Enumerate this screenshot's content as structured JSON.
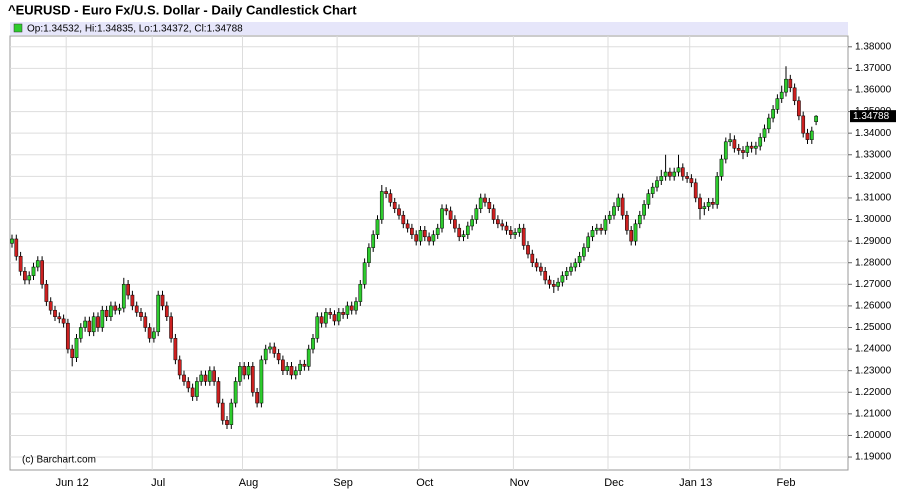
{
  "chart_data": {
    "type": "candlestick",
    "title": "^EURUSD - Euro Fx/U.S. Dollar - Daily Candlestick Chart",
    "ohlc_label": "Op:1.34532, Hi:1.34835, Lo:1.34372, Cl:1.34788",
    "credit": "(c) Barchart.com",
    "up_color": "#2ecc2e",
    "down_color": "#cc2020",
    "grid": true,
    "ylim": [
      1.184,
      1.385
    ],
    "yticks": [
      {
        "value": 1.19,
        "label": "1.19000"
      },
      {
        "value": 1.2,
        "label": "1.20000"
      },
      {
        "value": 1.21,
        "label": "1.21000"
      },
      {
        "value": 1.22,
        "label": "1.22000"
      },
      {
        "value": 1.23,
        "label": "1.23000"
      },
      {
        "value": 1.24,
        "label": "1.24000"
      },
      {
        "value": 1.25,
        "label": "1.25000"
      },
      {
        "value": 1.26,
        "label": "1.26000"
      },
      {
        "value": 1.27,
        "label": "1.27000"
      },
      {
        "value": 1.28,
        "label": "1.28000"
      },
      {
        "value": 1.29,
        "label": "1.29000"
      },
      {
        "value": 1.3,
        "label": "1.30000"
      },
      {
        "value": 1.31,
        "label": "1.31000"
      },
      {
        "value": 1.32,
        "label": "1.32000"
      },
      {
        "value": 1.33,
        "label": "1.33000"
      },
      {
        "value": 1.34,
        "label": "1.34000"
      },
      {
        "value": 1.35,
        "label": "1.35000"
      },
      {
        "value": 1.36,
        "label": "1.36000"
      },
      {
        "value": 1.37,
        "label": "1.37000"
      },
      {
        "value": 1.38,
        "label": "1.38000"
      }
    ],
    "categories": [
      null,
      null,
      null,
      null,
      null,
      null,
      null,
      null,
      null,
      null,
      null,
      null,
      null,
      null,
      "Jun 12",
      null,
      null,
      null,
      null,
      null,
      null,
      null,
      null,
      null,
      null,
      null,
      null,
      null,
      null,
      null,
      null,
      null,
      null,
      null,
      "Jul",
      null,
      null,
      null,
      null,
      null,
      null,
      null,
      null,
      null,
      null,
      null,
      null,
      null,
      null,
      null,
      null,
      null,
      null,
      null,
      null,
      "Aug",
      null,
      null,
      null,
      null,
      null,
      null,
      null,
      null,
      null,
      null,
      null,
      null,
      null,
      null,
      null,
      null,
      null,
      null,
      null,
      null,
      null,
      "Sep",
      null,
      null,
      null,
      null,
      null,
      null,
      null,
      null,
      null,
      null,
      null,
      null,
      null,
      null,
      null,
      null,
      null,
      null,
      "Oct",
      null,
      null,
      null,
      null,
      null,
      null,
      null,
      null,
      null,
      null,
      null,
      null,
      null,
      null,
      null,
      null,
      null,
      null,
      null,
      null,
      null,
      "Nov",
      null,
      null,
      null,
      null,
      null,
      null,
      null,
      null,
      null,
      null,
      null,
      null,
      null,
      null,
      null,
      null,
      null,
      null,
      null,
      null,
      null,
      "Dec",
      null,
      null,
      null,
      null,
      null,
      null,
      null,
      null,
      null,
      null,
      null,
      null,
      null,
      null,
      null,
      null,
      null,
      null,
      "Jan 13",
      null,
      null,
      null,
      null,
      null,
      null,
      null,
      null,
      null,
      null,
      null,
      null,
      null,
      null,
      null,
      null,
      null,
      null,
      null,
      null,
      "Feb",
      null,
      null,
      null,
      null,
      null,
      null,
      null
    ],
    "open": [
      1.289,
      1.291,
      1.283,
      1.276,
      1.272,
      1.274,
      1.278,
      1.281,
      1.27,
      1.262,
      1.258,
      1.255,
      1.254,
      1.252,
      1.24,
      1.236,
      1.245,
      1.25,
      1.253,
      1.248,
      1.255,
      1.25,
      1.258,
      1.255,
      1.26,
      1.258,
      1.259,
      1.27,
      1.265,
      1.26,
      1.257,
      1.255,
      1.25,
      1.245,
      1.248,
      1.265,
      1.26,
      1.255,
      1.245,
      1.235,
      1.228,
      1.225,
      1.222,
      1.218,
      1.225,
      1.228,
      1.225,
      1.23,
      1.225,
      1.215,
      1.207,
      1.205,
      1.215,
      1.225,
      1.232,
      1.228,
      1.232,
      1.22,
      1.215,
      1.235,
      1.24,
      1.241,
      1.238,
      1.235,
      1.23,
      1.232,
      1.228,
      1.23,
      1.233,
      1.232,
      1.24,
      1.245,
      1.255,
      1.252,
      1.257,
      1.256,
      1.253,
      1.257,
      1.256,
      1.26,
      1.258,
      1.262,
      1.27,
      1.28,
      1.287,
      1.293,
      1.3,
      1.313,
      1.312,
      1.308,
      1.305,
      1.302,
      1.298,
      1.296,
      1.293,
      1.29,
      1.295,
      1.292,
      1.29,
      1.293,
      1.296,
      1.305,
      1.304,
      1.3,
      1.296,
      1.292,
      1.293,
      1.297,
      1.3,
      1.305,
      1.31,
      1.308,
      1.305,
      1.3,
      1.298,
      1.297,
      1.295,
      1.293,
      1.294,
      1.296,
      1.288,
      1.284,
      1.28,
      1.278,
      1.276,
      1.272,
      1.27,
      1.269,
      1.271,
      1.274,
      1.276,
      1.278,
      1.28,
      1.283,
      1.287,
      1.292,
      1.295,
      1.296,
      1.295,
      1.3,
      1.302,
      1.306,
      1.31,
      1.302,
      1.295,
      1.29,
      1.298,
      1.302,
      1.307,
      1.312,
      1.315,
      1.318,
      1.32,
      1.322,
      1.32,
      1.322,
      1.324,
      1.32,
      1.319,
      1.317,
      1.31,
      1.305,
      1.306,
      1.308,
      1.307,
      1.32,
      1.328,
      1.336,
      1.337,
      1.333,
      1.332,
      1.331,
      1.334,
      1.333,
      1.334,
      1.338,
      1.342,
      1.347,
      1.351,
      1.356,
      1.359,
      1.365,
      1.361,
      1.355,
      1.348,
      1.34,
      1.337,
      1.34532
    ],
    "high": [
      1.293,
      1.293,
      1.285,
      1.278,
      1.276,
      1.28,
      1.283,
      1.283,
      1.272,
      1.264,
      1.26,
      1.257,
      1.256,
      1.254,
      1.242,
      1.247,
      1.252,
      1.255,
      1.255,
      1.257,
      1.257,
      1.26,
      1.26,
      1.262,
      1.262,
      1.261,
      1.273,
      1.272,
      1.267,
      1.262,
      1.259,
      1.257,
      1.252,
      1.25,
      1.267,
      1.267,
      1.262,
      1.257,
      1.247,
      1.237,
      1.23,
      1.227,
      1.224,
      1.227,
      1.23,
      1.23,
      1.232,
      1.232,
      1.227,
      1.217,
      1.209,
      1.217,
      1.227,
      1.234,
      1.234,
      1.234,
      1.234,
      1.222,
      1.237,
      1.242,
      1.243,
      1.243,
      1.24,
      1.237,
      1.234,
      1.234,
      1.232,
      1.235,
      1.235,
      1.242,
      1.247,
      1.257,
      1.257,
      1.259,
      1.259,
      1.258,
      1.259,
      1.259,
      1.262,
      1.262,
      1.264,
      1.272,
      1.282,
      1.289,
      1.295,
      1.302,
      1.316,
      1.315,
      1.314,
      1.31,
      1.307,
      1.304,
      1.3,
      1.298,
      1.295,
      1.297,
      1.297,
      1.294,
      1.295,
      1.298,
      1.307,
      1.307,
      1.306,
      1.302,
      1.298,
      1.295,
      1.299,
      1.302,
      1.307,
      1.312,
      1.312,
      1.31,
      1.307,
      1.302,
      1.3,
      1.299,
      1.297,
      1.296,
      1.298,
      1.298,
      1.29,
      1.286,
      1.282,
      1.28,
      1.278,
      1.274,
      1.272,
      1.273,
      1.276,
      1.278,
      1.28,
      1.282,
      1.285,
      1.289,
      1.294,
      1.297,
      1.298,
      1.298,
      1.302,
      1.304,
      1.308,
      1.312,
      1.312,
      1.304,
      1.297,
      1.3,
      1.304,
      1.309,
      1.314,
      1.317,
      1.32,
      1.323,
      1.33,
      1.324,
      1.324,
      1.33,
      1.326,
      1.322,
      1.321,
      1.319,
      1.312,
      1.308,
      1.31,
      1.31,
      1.322,
      1.33,
      1.338,
      1.34,
      1.339,
      1.335,
      1.334,
      1.336,
      1.336,
      1.336,
      1.34,
      1.344,
      1.349,
      1.353,
      1.358,
      1.362,
      1.371,
      1.367,
      1.363,
      1.357,
      1.35,
      1.342,
      1.343,
      1.34835
    ],
    "low": [
      1.287,
      1.281,
      1.274,
      1.27,
      1.27,
      1.272,
      1.276,
      1.268,
      1.26,
      1.256,
      1.253,
      1.252,
      1.25,
      1.238,
      1.232,
      1.234,
      1.243,
      1.248,
      1.246,
      1.246,
      1.248,
      1.248,
      1.253,
      1.253,
      1.256,
      1.256,
      1.257,
      1.263,
      1.258,
      1.255,
      1.253,
      1.248,
      1.243,
      1.243,
      1.246,
      1.258,
      1.253,
      1.243,
      1.233,
      1.226,
      1.223,
      1.22,
      1.216,
      1.216,
      1.223,
      1.223,
      1.223,
      1.223,
      1.213,
      1.205,
      1.203,
      1.203,
      1.213,
      1.223,
      1.226,
      1.226,
      1.218,
      1.213,
      1.213,
      1.233,
      1.238,
      1.236,
      1.233,
      1.228,
      1.228,
      1.226,
      1.226,
      1.228,
      1.23,
      1.23,
      1.238,
      1.243,
      1.25,
      1.25,
      1.254,
      1.251,
      1.251,
      1.254,
      1.254,
      1.256,
      1.256,
      1.26,
      1.268,
      1.278,
      1.285,
      1.291,
      1.298,
      1.31,
      1.306,
      1.303,
      1.3,
      1.296,
      1.294,
      1.291,
      1.288,
      1.288,
      1.29,
      1.288,
      1.288,
      1.291,
      1.294,
      1.302,
      1.298,
      1.294,
      1.29,
      1.29,
      1.291,
      1.295,
      1.298,
      1.303,
      1.306,
      1.303,
      1.298,
      1.296,
      1.295,
      1.293,
      1.291,
      1.291,
      1.292,
      1.286,
      1.282,
      1.278,
      1.276,
      1.274,
      1.27,
      1.268,
      1.266,
      1.267,
      1.269,
      1.272,
      1.274,
      1.276,
      1.278,
      1.281,
      1.285,
      1.29,
      1.293,
      1.293,
      1.293,
      1.298,
      1.3,
      1.304,
      1.3,
      1.293,
      1.288,
      1.288,
      1.296,
      1.3,
      1.305,
      1.31,
      1.313,
      1.316,
      1.318,
      1.318,
      1.318,
      1.32,
      1.318,
      1.317,
      1.315,
      1.308,
      1.3,
      1.302,
      1.304,
      1.305,
      1.305,
      1.318,
      1.326,
      1.334,
      1.331,
      1.33,
      1.328,
      1.329,
      1.331,
      1.33,
      1.332,
      1.336,
      1.34,
      1.345,
      1.349,
      1.354,
      1.357,
      1.359,
      1.353,
      1.346,
      1.338,
      1.335,
      1.335,
      1.34372
    ],
    "close": [
      1.291,
      1.283,
      1.276,
      1.272,
      1.274,
      1.278,
      1.281,
      1.27,
      1.262,
      1.258,
      1.255,
      1.254,
      1.252,
      1.24,
      1.236,
      1.245,
      1.25,
      1.253,
      1.248,
      1.255,
      1.25,
      1.258,
      1.255,
      1.26,
      1.258,
      1.259,
      1.27,
      1.265,
      1.26,
      1.257,
      1.255,
      1.25,
      1.245,
      1.248,
      1.265,
      1.26,
      1.255,
      1.245,
      1.235,
      1.228,
      1.225,
      1.222,
      1.218,
      1.225,
      1.228,
      1.225,
      1.23,
      1.225,
      1.215,
      1.207,
      1.205,
      1.215,
      1.225,
      1.232,
      1.228,
      1.232,
      1.22,
      1.215,
      1.235,
      1.24,
      1.241,
      1.238,
      1.235,
      1.23,
      1.232,
      1.228,
      1.23,
      1.233,
      1.232,
      1.24,
      1.245,
      1.255,
      1.252,
      1.257,
      1.256,
      1.253,
      1.257,
      1.256,
      1.26,
      1.258,
      1.262,
      1.27,
      1.28,
      1.287,
      1.293,
      1.3,
      1.313,
      1.312,
      1.308,
      1.305,
      1.302,
      1.298,
      1.296,
      1.293,
      1.29,
      1.295,
      1.292,
      1.29,
      1.293,
      1.296,
      1.305,
      1.304,
      1.3,
      1.296,
      1.292,
      1.293,
      1.297,
      1.3,
      1.305,
      1.31,
      1.308,
      1.305,
      1.3,
      1.298,
      1.297,
      1.295,
      1.293,
      1.294,
      1.296,
      1.288,
      1.284,
      1.28,
      1.278,
      1.276,
      1.272,
      1.27,
      1.269,
      1.271,
      1.274,
      1.276,
      1.278,
      1.28,
      1.283,
      1.287,
      1.292,
      1.295,
      1.296,
      1.295,
      1.3,
      1.302,
      1.306,
      1.31,
      1.302,
      1.295,
      1.29,
      1.298,
      1.302,
      1.307,
      1.312,
      1.315,
      1.318,
      1.32,
      1.322,
      1.32,
      1.322,
      1.324,
      1.32,
      1.319,
      1.317,
      1.31,
      1.305,
      1.306,
      1.308,
      1.307,
      1.32,
      1.328,
      1.336,
      1.337,
      1.333,
      1.332,
      1.331,
      1.334,
      1.333,
      1.334,
      1.338,
      1.342,
      1.347,
      1.351,
      1.356,
      1.359,
      1.365,
      1.361,
      1.355,
      1.348,
      1.34,
      1.337,
      1.341,
      1.34788
    ]
  }
}
